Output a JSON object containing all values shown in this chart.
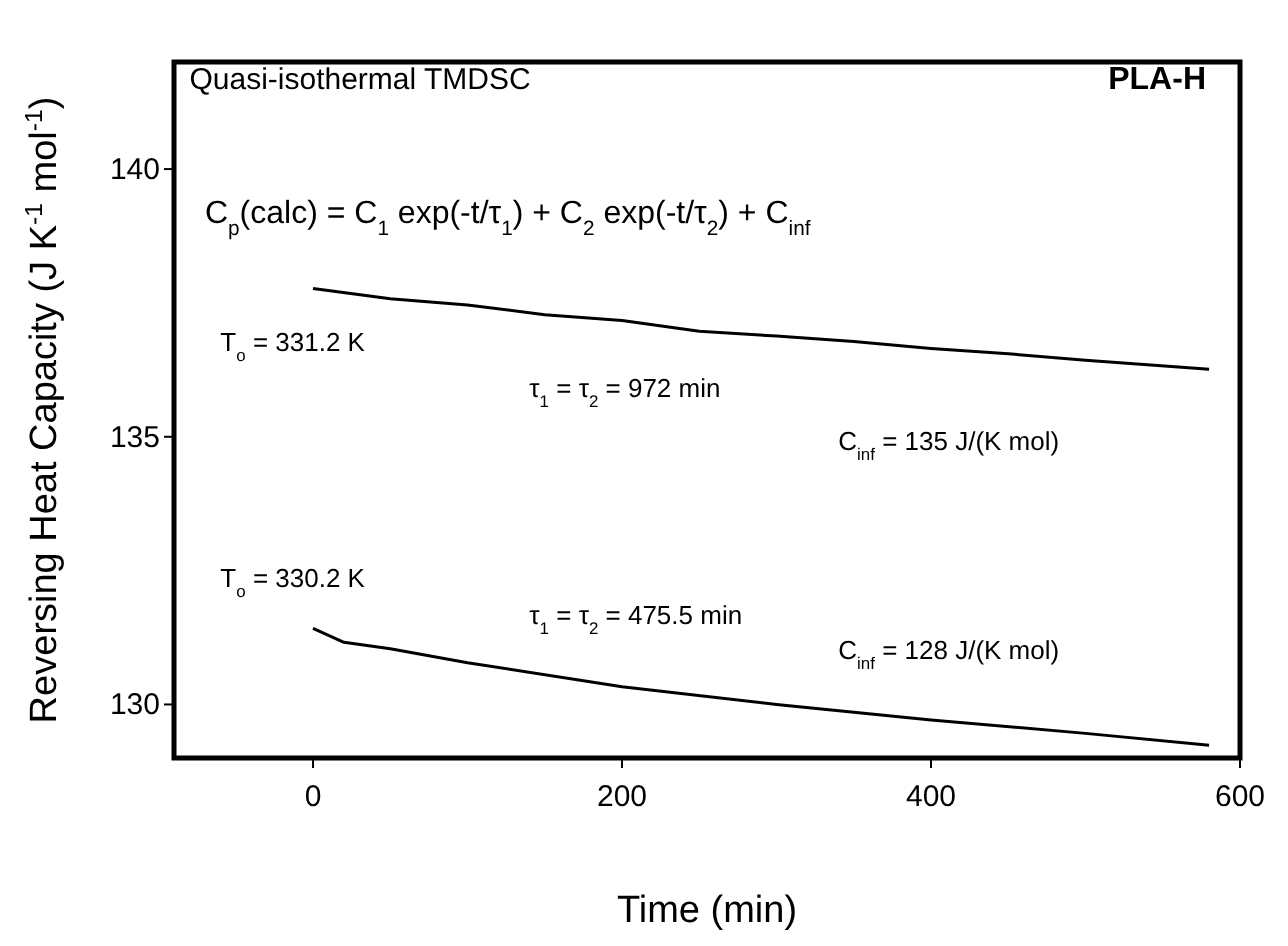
{
  "chart_data": {
    "type": "line",
    "xlabel": "Time (min)",
    "ylabel": "Reversing Heat Capacity (J K$^{-1}$ mol$^{-1}$)",
    "xlim": [
      -90,
      600
    ],
    "xticks": [
      0,
      200,
      400,
      600
    ],
    "ylim": [
      129,
      142
    ],
    "yticks": [
      130,
      135,
      140
    ],
    "grid": false,
    "line_style": "solid",
    "series": [
      {
        "color": "#000000",
        "x": [
          0,
          50,
          100,
          150,
          200,
          250,
          300,
          350,
          400,
          450,
          500,
          580
        ],
        "values": [
          137.77,
          137.58,
          137.46,
          137.28,
          137.17,
          136.97,
          136.88,
          136.78,
          136.65,
          136.55,
          136.43,
          136.26
        ]
      },
      {
        "color": "#000000",
        "x": [
          0,
          20,
          50,
          100,
          200,
          300,
          400,
          500,
          580
        ],
        "values": [
          131.42,
          131.16,
          131.04,
          130.78,
          130.33,
          130.0,
          129.71,
          129.46,
          129.24
        ]
      }
    ],
    "annotations": [
      "Quasi-isothermal  TMDSC",
      "PLA-H",
      "C$_{p}$(calc) = C$_{1}$ exp(-t/τ$_{1}$) + C$_{2}$ exp(-t/τ$_{2}$) + C$_{inf}$",
      "T$_{o}$ = 331.2 K",
      "τ$_{1}$ = τ$_{2}$ = 972 min",
      "C$_{inf}$ = 135 J/(K mol)",
      "T$_{o}$ = 330.2 K",
      "τ$_{1}$ = τ$_{2}$ = 475.5 min",
      "C$_{inf}$ = 128 J/(K mol)"
    ]
  }
}
